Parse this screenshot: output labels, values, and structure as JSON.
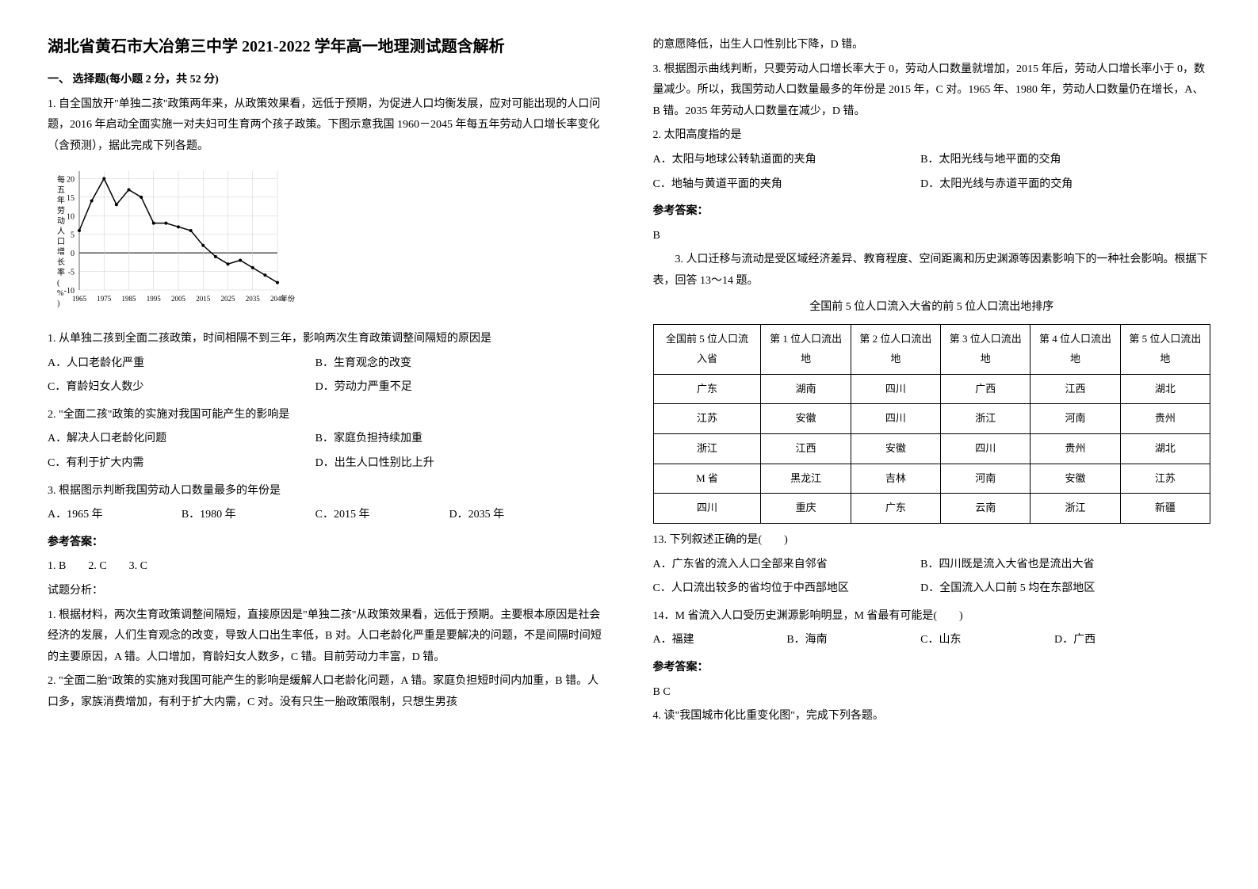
{
  "title": "湖北省黄石市大冶第三中学 2021-2022 学年高一地理测试题含解析",
  "section1_heading": "一、 选择题(每小题 2 分，共 52 分)",
  "q1": {
    "stem": "1. 自全国放开\"单独二孩\"政策两年来，从政策效果看，远低于预期，为促进人口均衡发展，应对可能出现的人口问题，2016 年启动全面实施一对夫妇可生育两个孩子政策。下图示意我国 1960－2045 年每五年劳动人口增长率变化（含预测），据此完成下列各题。",
    "chart": {
      "type": "line",
      "xlabel": "年份",
      "ylabel": "每五年劳动人口增长率(%)",
      "x_ticks": [
        "1965",
        "1975",
        "1985",
        "1995",
        "2005",
        "2015",
        "2025",
        "2035",
        "2045"
      ],
      "ylim": [
        -10,
        22
      ],
      "y_ticks": [
        -10,
        -5,
        0,
        5,
        10,
        15,
        20
      ],
      "grid_color": "#cccccc",
      "line_color": "#000000",
      "background_color": "#ffffff",
      "data": [
        {
          "x": "1965",
          "y": 6
        },
        {
          "x": "1970",
          "y": 14
        },
        {
          "x": "1975",
          "y": 20
        },
        {
          "x": "1980",
          "y": 13
        },
        {
          "x": "1985",
          "y": 17
        },
        {
          "x": "1990",
          "y": 15
        },
        {
          "x": "1995",
          "y": 8
        },
        {
          "x": "2000",
          "y": 8
        },
        {
          "x": "2005",
          "y": 7
        },
        {
          "x": "2010",
          "y": 6
        },
        {
          "x": "2015",
          "y": 2
        },
        {
          "x": "2020",
          "y": -1
        },
        {
          "x": "2025",
          "y": -3
        },
        {
          "x": "2030",
          "y": -2
        },
        {
          "x": "2035",
          "y": -4
        },
        {
          "x": "2040",
          "y": -6
        },
        {
          "x": "2045",
          "y": -8
        }
      ]
    },
    "sub1": "1. 从单独二孩到全面二孩政策，时间相隔不到三年，影响两次生育政策调整间隔短的原因是",
    "sub1_opts": {
      "A": "A．人口老龄化严重",
      "B": "B．生育观念的改变",
      "C": "C．育龄妇女人数少",
      "D": "D．劳动力严重不足"
    },
    "sub2": "2. \"全面二孩\"政策的实施对我国可能产生的影响是",
    "sub2_opts": {
      "A": "A．解决人口老龄化问题",
      "B": "B．家庭负担持续加重",
      "C": "C．有利于扩大内需",
      "D": "D．出生人口性别比上升"
    },
    "sub3": "3. 根据图示判断我国劳动人口数量最多的年份是",
    "sub3_opts": {
      "A": "A．1965 年",
      "B": "B．1980 年",
      "C": "C．2015 年",
      "D": "D．2035 年"
    },
    "ans_heading": "参考答案：",
    "answers": "1. B        2. C        3. C",
    "analysis_heading": "试题分析：",
    "a1": "1. 根据材料，两次生育政策调整间隔短，直接原因是\"单独二孩\"从政策效果看，远低于预期。主要根本原因是社会经济的发展，人们生育观念的改变，导致人口出生率低，B 对。人口老龄化严重是要解决的问题，不是间隔时间短的主要原因，A 错。人口增加，育龄妇女人数多，C 错。目前劳动力丰富，D 错。",
    "a2": "2. \"全面二胎\"政策的实施对我国可能产生的影响是缓解人口老龄化问题，A 错。家庭负担短时间内加重，B 错。人口多，家族消费增加，有利于扩大内需，C 对。没有只生一胎政策限制，只想生男孩",
    "a2_cont": "的意愿降低，出生人口性别比下降，D 错。",
    "a3": "3. 根据图示曲线判断，只要劳动人口增长率大于 0，劳动人口数量就增加，2015 年后，劳动人口增长率小于 0，数量减少。所以，我国劳动人口数量最多的年份是 2015 年，C 对。1965 年、1980 年，劳动人口数量仍在增长，A、B 错。2035 年劳动人口数量在减少，D 错。"
  },
  "q2": {
    "stem": "2. 太阳高度指的是",
    "opts": {
      "A": "A．太阳与地球公转轨道面的夹角",
      "B": "B．太阳光线与地平面的交角",
      "C": "C．地轴与黄道平面的夹角",
      "D": "D．太阳光线与赤道平面的交角"
    },
    "ans_heading": "参考答案：",
    "answer": "B"
  },
  "q3": {
    "intro": "3. 人口迁移与流动是受区域经济差异、教育程度、空间距离和历史渊源等因素影响下的一种社会影响。根据下表，回答 13～14 题。",
    "table_caption": "全国前 5 位人口流入大省的前 5 位人口流出地排序",
    "table": {
      "columns": [
        "全国前 5 位人口流入省",
        "第 1 位人口流出地",
        "第 2 位人口流出地",
        "第 3 位人口流出地",
        "第 4 位人口流出地",
        "第 5 位人口流出地"
      ],
      "rows": [
        [
          "广东",
          "湖南",
          "四川",
          "广西",
          "江西",
          "湖北"
        ],
        [
          "江苏",
          "安徽",
          "四川",
          "浙江",
          "河南",
          "贵州"
        ],
        [
          "浙江",
          "江西",
          "安徽",
          "四川",
          "贵州",
          "湖北"
        ],
        [
          "M 省",
          "黑龙江",
          "吉林",
          "河南",
          "安徽",
          "江苏"
        ],
        [
          "四川",
          "重庆",
          "广东",
          "云南",
          "浙江",
          "新疆"
        ]
      ]
    },
    "q13": "13. 下列叙述正确的是(　　)",
    "q13_opts": {
      "A": "A．广东省的流入人口全部来自邻省",
      "B": "B．四川既是流入大省也是流出大省",
      "C": "C．人口流出较多的省均位于中西部地区",
      "D": "D．全国流入人口前 5 均在东部地区"
    },
    "q14": "14．M 省流入人口受历史渊源影响明显，M 省最有可能是(　　)",
    "q14_opts": {
      "A": "A．福建",
      "B": "B．海南",
      "C": "C．山东",
      "D": "D．广西"
    },
    "ans_heading": "参考答案：",
    "answer": "B  C"
  },
  "q4": {
    "stem": "4. 读\"我国城市化比重变化图\"，完成下列各题。"
  }
}
